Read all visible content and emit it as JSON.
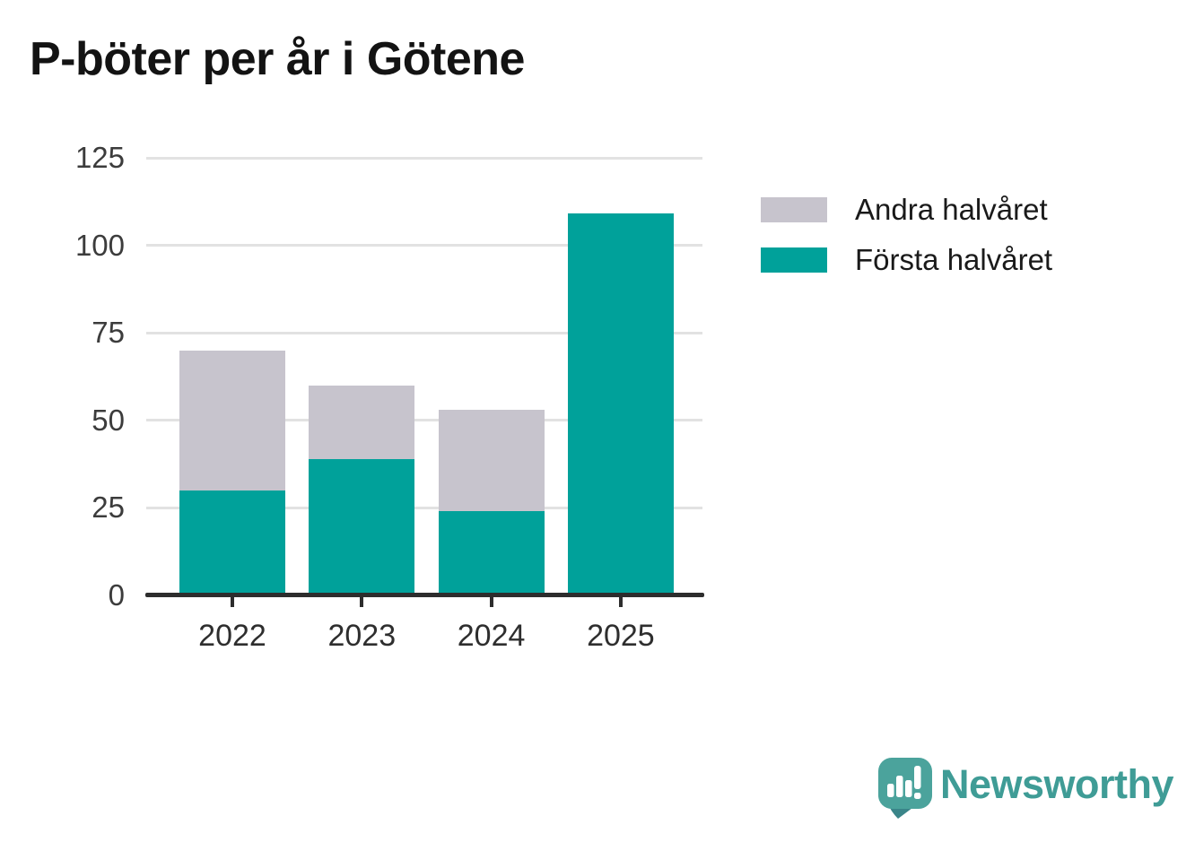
{
  "title": "P-böter per år i Götene",
  "chart_data": {
    "type": "bar",
    "stacked": true,
    "title": "P-böter per år i Götene",
    "categories": [
      "2022",
      "2023",
      "2024",
      "2025"
    ],
    "series": [
      {
        "name": "Första halvåret",
        "color": "#00A19A",
        "values": [
          30,
          39,
          24,
          109
        ]
      },
      {
        "name": "Andra halvåret",
        "color": "#C7C4CD",
        "values": [
          40,
          21,
          29,
          0
        ]
      }
    ],
    "totals": [
      70,
      60,
      53,
      109
    ],
    "xlabel": "",
    "ylabel": "",
    "ylim": [
      0,
      125
    ],
    "yticks": [
      0,
      25,
      50,
      75,
      100,
      125
    ],
    "grid": true,
    "legend_position": "right-top"
  },
  "legend": {
    "items": [
      {
        "label": "Andra halvåret",
        "color": "#C7C4CD"
      },
      {
        "label": "Första halvåret",
        "color": "#00A19A"
      }
    ]
  },
  "branding": {
    "name": "Newsworthy",
    "text_color": "#3F9C96",
    "mark_color": "#4BA39C",
    "mark_tail_color": "#3A8589"
  },
  "theme": {
    "grid_color": "#E2E2E2",
    "axis_color": "#2D2D2D",
    "tick_label_color": "#3C3C3C",
    "background": "#FFFFFF"
  }
}
